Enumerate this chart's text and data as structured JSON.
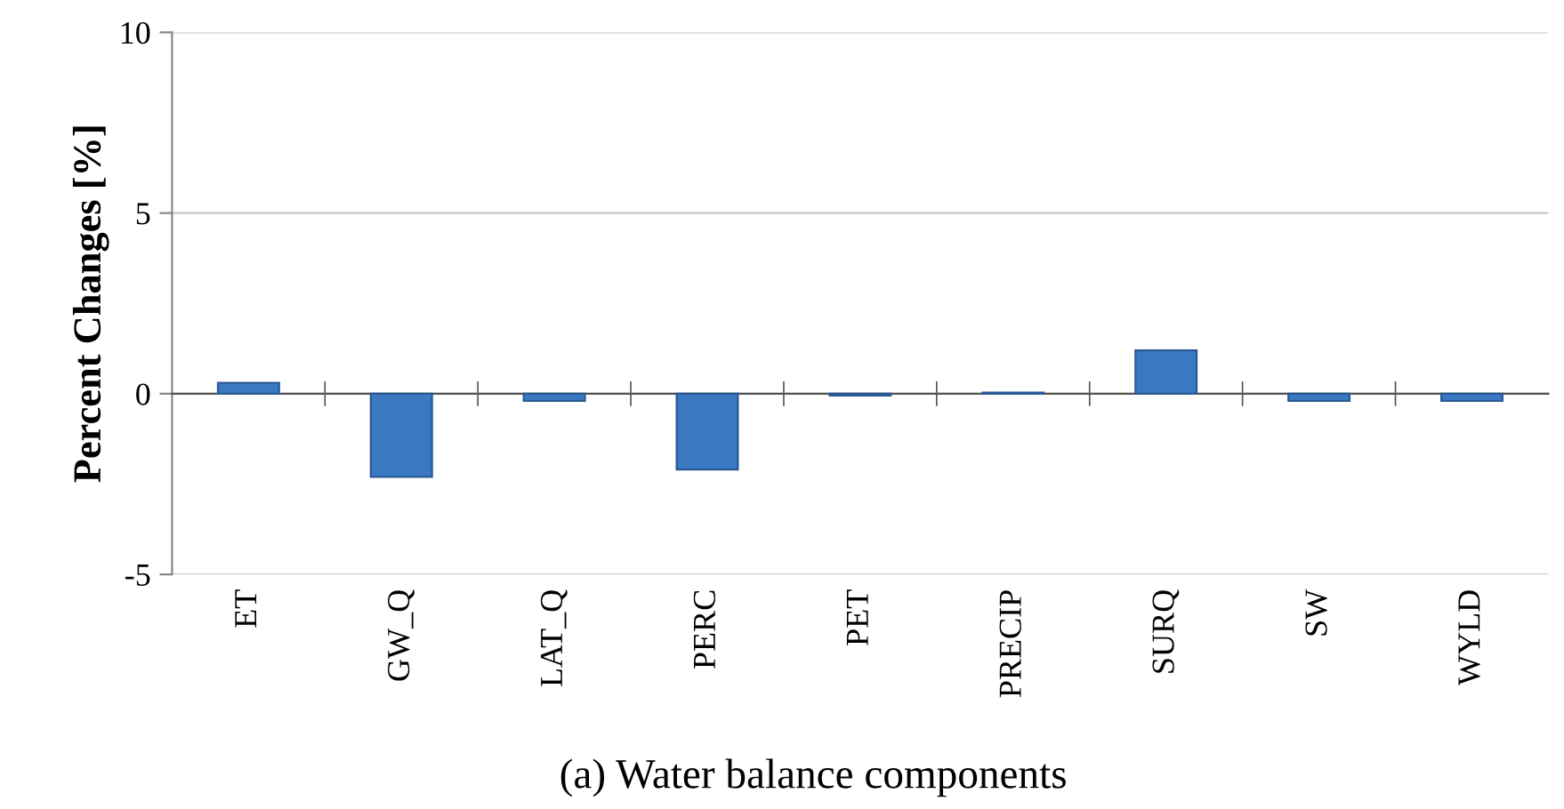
{
  "chart_data": {
    "type": "bar",
    "title": "(a) Water balance components",
    "ylabel": "Percent Changes [%]",
    "categories": [
      "ET",
      "GW_Q",
      "LAT_Q",
      "PERC",
      "PET",
      "PRECIP",
      "SURQ",
      "SW",
      "WYLD"
    ],
    "values": [
      0.3,
      -2.3,
      -0.2,
      -2.1,
      -0.05,
      0.03,
      1.2,
      -0.2,
      -0.2
    ],
    "color": "#3a78c2",
    "ylim": [
      -5,
      10
    ],
    "yticks": [
      -5,
      0,
      5,
      10
    ],
    "grid": "y"
  }
}
